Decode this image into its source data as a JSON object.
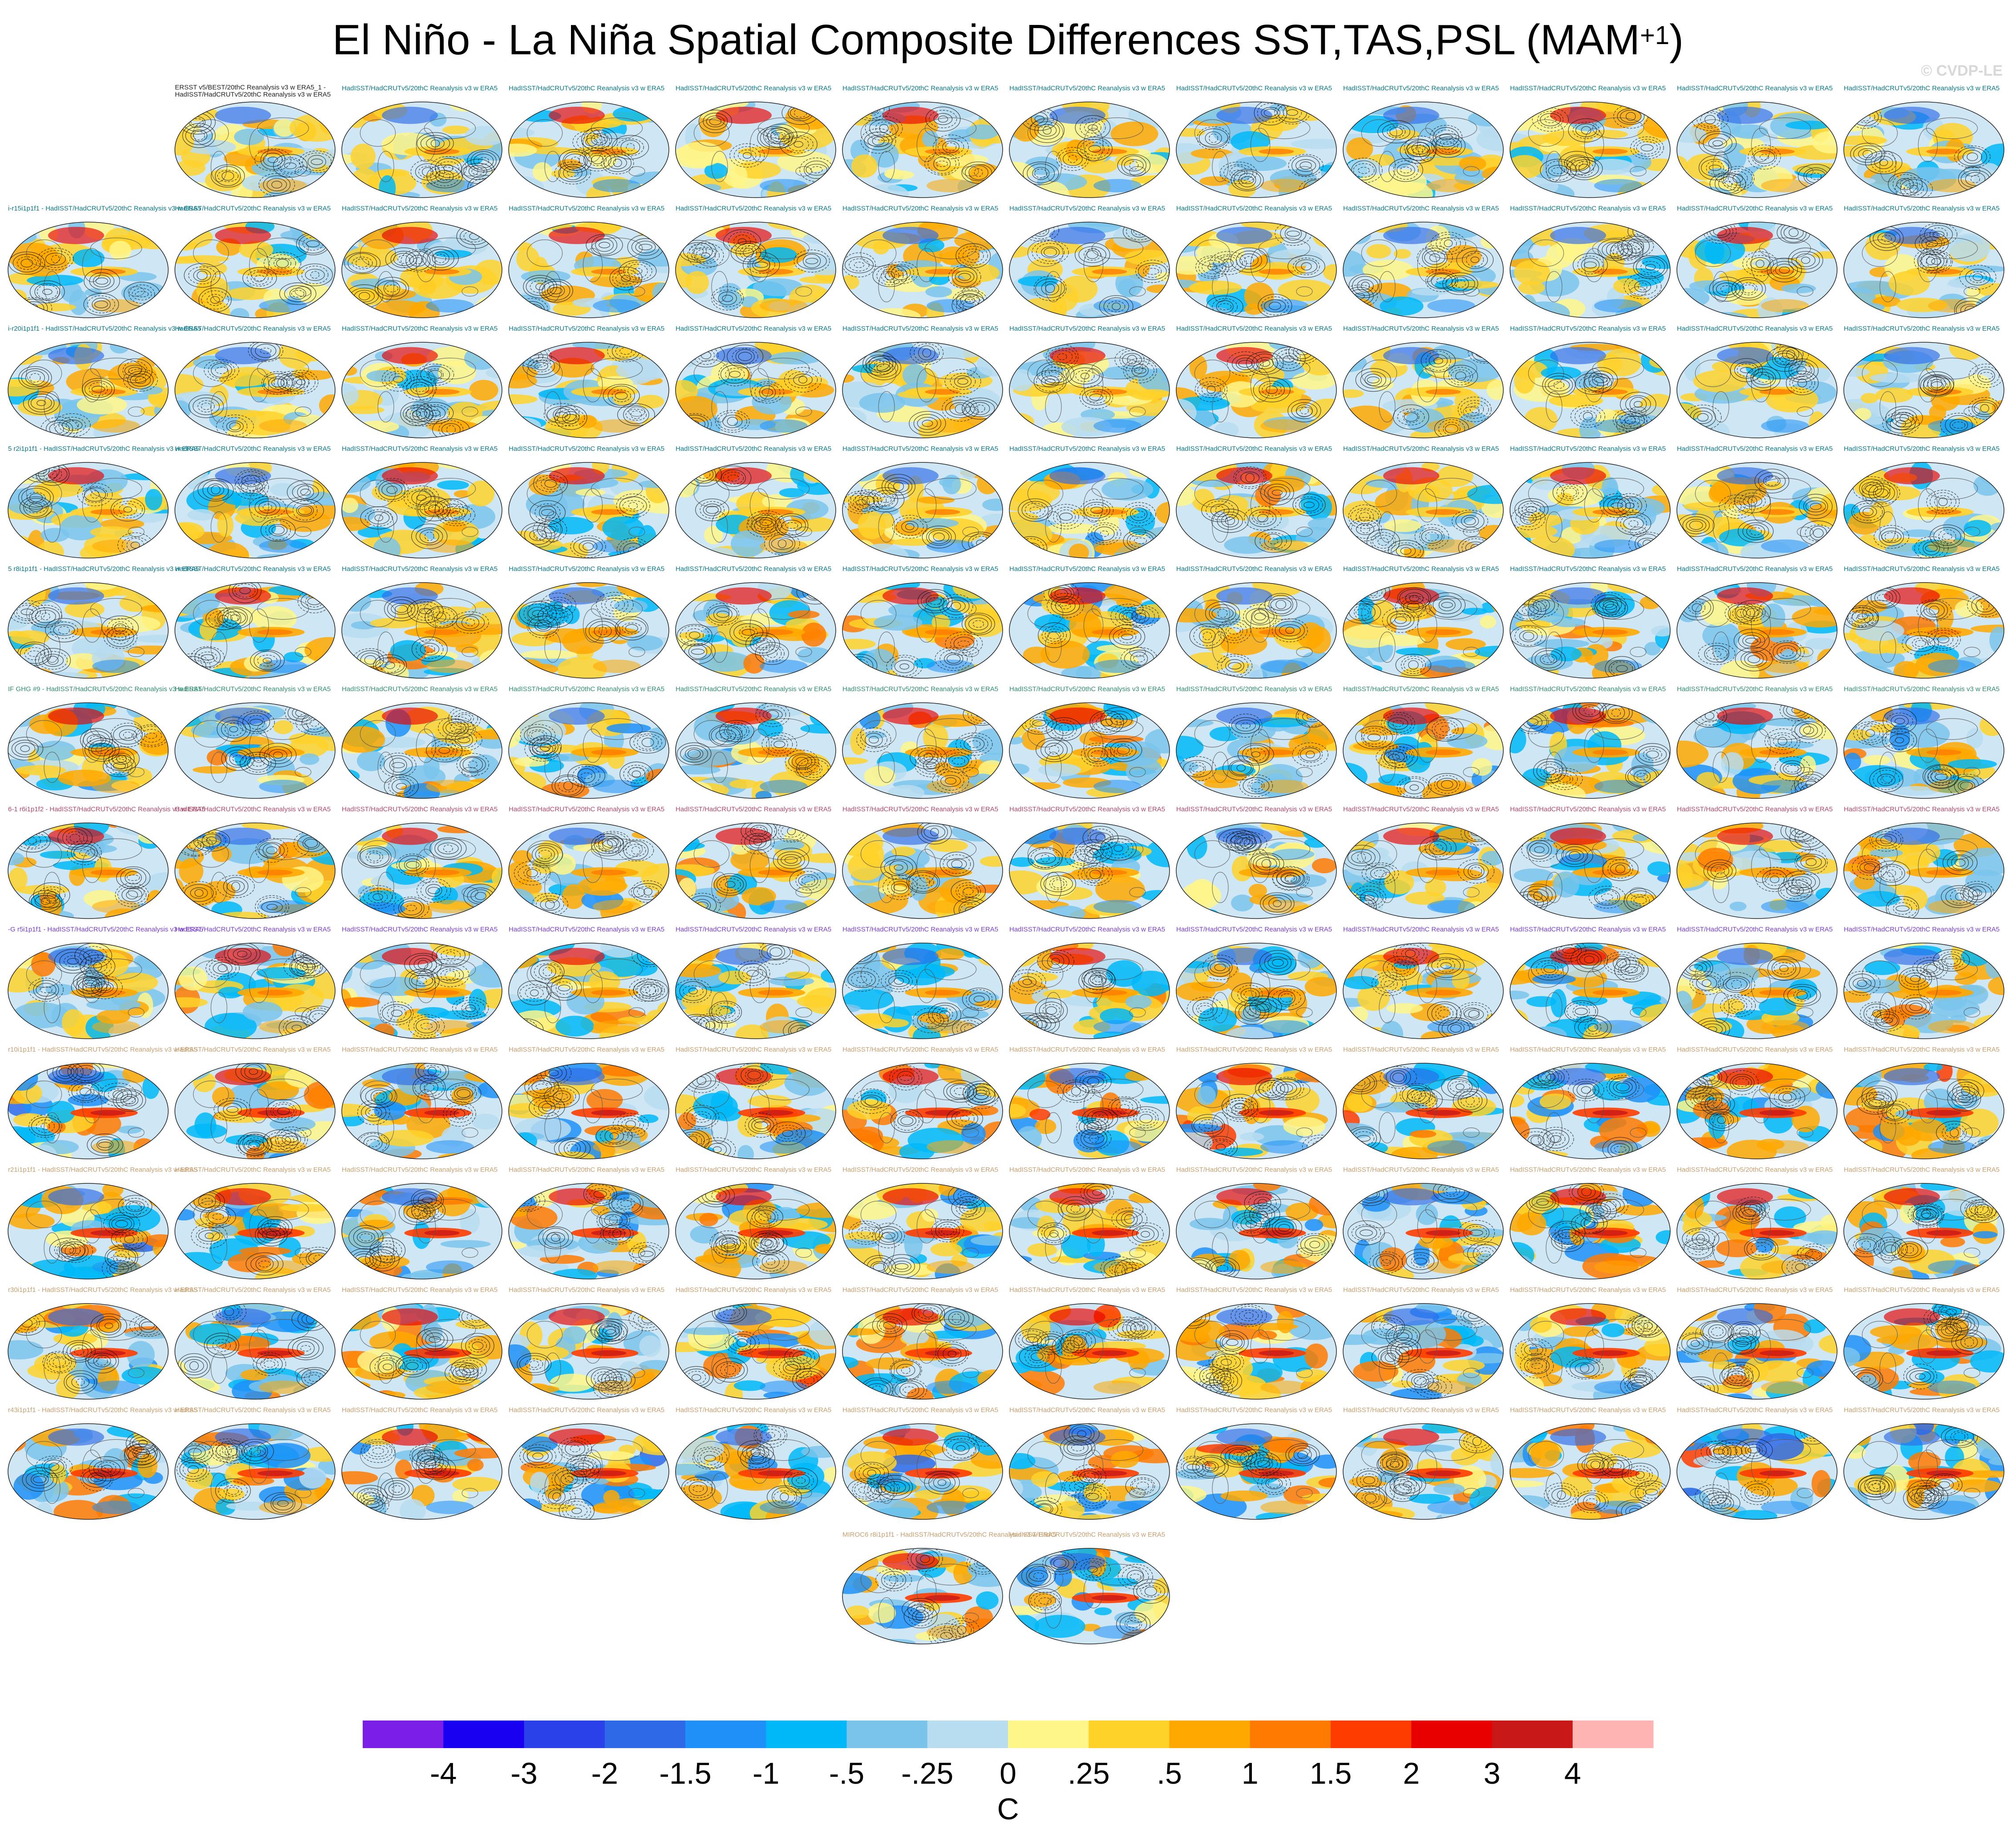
{
  "title": {
    "main": "El Niño - La Niña Spatial Composite Differences SST,TAS,PSL (MAM",
    "sup": "+1",
    "close": ")"
  },
  "credit": "© CVDP-LE",
  "figure": {
    "columns": 12,
    "rows_full": 12,
    "last_row_panels": 2,
    "first_row_panels": 11,
    "obs_label_line1": "ERSST v5/BEST/20thC Reanalysis v3 w ERA5_1 -",
    "obs_label_line2": "HadISST/HadCRUTv5/20thC Reanalysis v3 w ERA5",
    "panel_label": "HadISST/HadCRUTv5/20thC Reanalysis v3 w ERA5",
    "row_prefixes": [
      "",
      "i-r15i1p1f1",
      "i-r20i1p1f1",
      "5 r2i1p1f1",
      "5 r8i1p1f1",
      "IF GHG #9",
      "6-1 r6i1p1f2",
      "-G r5i1p1f1",
      "r10i1p1f1",
      "r21i1p1f1",
      "r30i1p1f1",
      "r43i1p1f1",
      "MIROC6 r8i1p1f1"
    ],
    "label_colors": [
      "#0a7a8a",
      "#0a7a8a",
      "#0a7a8a",
      "#0a7a8a",
      "#0a7a8a",
      "#2f8f6f",
      "#b24a6a",
      "#7a3fd0",
      "#c8a070",
      "#c8a070",
      "#c8a070",
      "#c8a070",
      "#c8a070"
    ],
    "intensity": [
      0.4,
      0.5,
      0.5,
      0.55,
      0.65,
      0.75,
      0.7,
      0.7,
      0.95,
      0.95,
      0.9,
      0.95,
      0.9
    ]
  },
  "colorbar": {
    "units": "C",
    "ticks": [
      "-4",
      "-3",
      "-2",
      "-1.5",
      "-1",
      "-.5",
      "-.25",
      "0",
      ".25",
      ".5",
      "1",
      "1.5",
      "2",
      "3",
      "4"
    ],
    "colors": [
      "#7b1fe8",
      "#1a00f0",
      "#2a40e8",
      "#2e6ae8",
      "#1e90f8",
      "#00b8f8",
      "#7ac4ec",
      "#b8dcf0",
      "#fff68a",
      "#ffd22a",
      "#ffa800",
      "#ff7a00",
      "#ff3c00",
      "#e80000",
      "#c81818",
      "#ffb4b4"
    ]
  }
}
